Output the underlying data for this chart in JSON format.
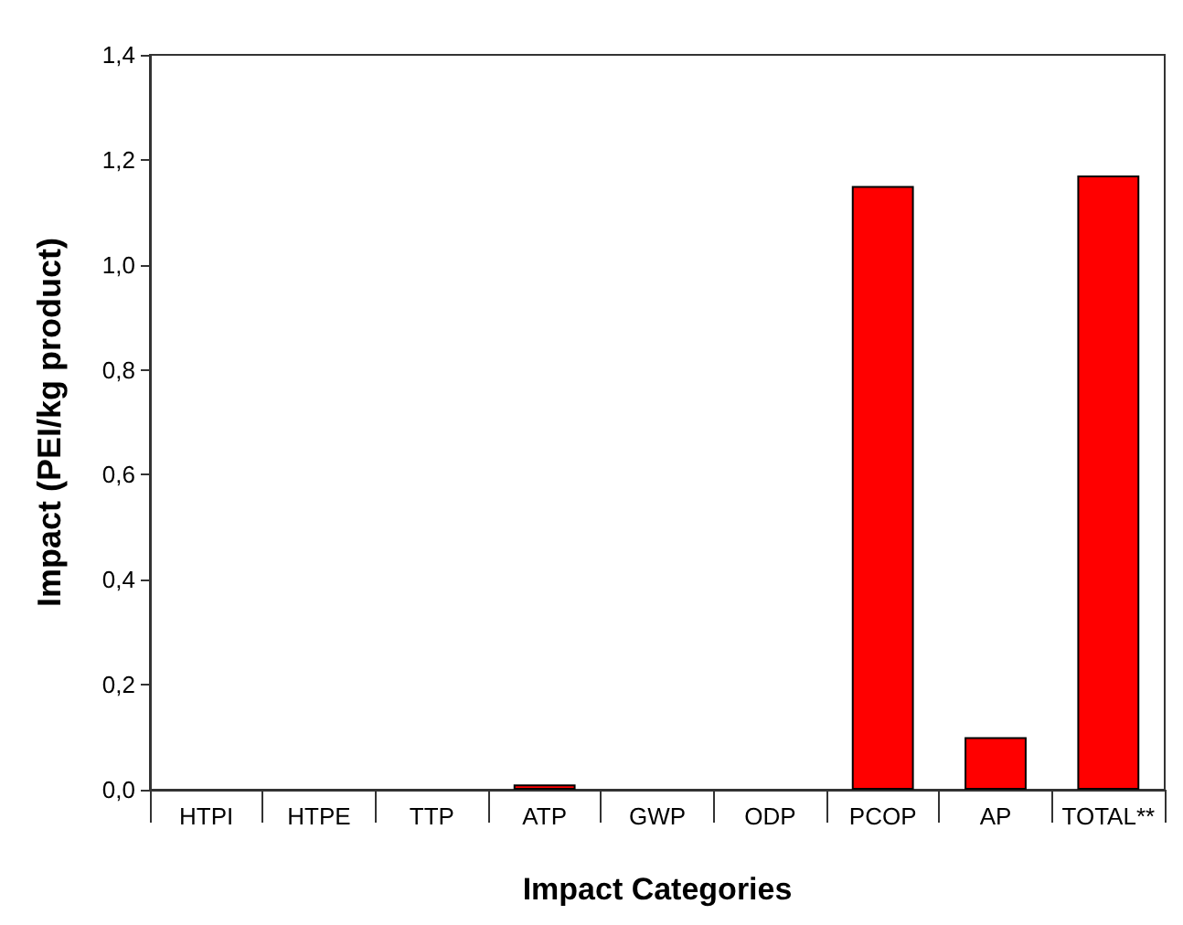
{
  "chart_data": {
    "type": "bar",
    "xlabel": "Impact Categories",
    "ylabel": "Impact (PEI/kg product)",
    "categories": [
      "HTPI",
      "HTPE",
      "TTP",
      "ATP",
      "GWP",
      "ODP",
      "PCOP",
      "AP",
      "TOTAL**"
    ],
    "values": [
      0,
      0,
      0,
      0.01,
      0,
      0,
      1.15,
      0.1,
      1.17
    ],
    "color": "#ff0000",
    "ylim": [
      0,
      1.4
    ],
    "yticks": [
      {
        "value": 0,
        "label": "0,0"
      },
      {
        "value": 0.2,
        "label": "0,2"
      },
      {
        "value": 0.4,
        "label": "0,4"
      },
      {
        "value": 0.6,
        "label": "0,6"
      },
      {
        "value": 0.8,
        "label": "0,8"
      },
      {
        "value": 1,
        "label": "1,0"
      },
      {
        "value": 1.2,
        "label": "1,2"
      },
      {
        "value": 1.4,
        "label": "1,4"
      }
    ],
    "grid": false
  }
}
